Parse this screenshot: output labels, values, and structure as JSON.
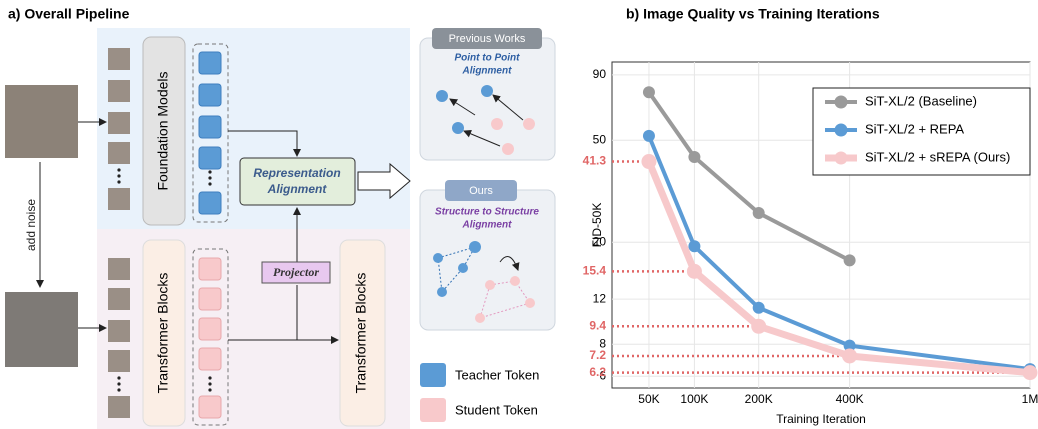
{
  "diagram": {
    "title": "a) Overall Pipeline",
    "add_noise": "add noise",
    "foundation_models": "Foundation Models",
    "transformer_blocks_left": "Transformer Blocks",
    "transformer_blocks_right": "Transformer Blocks",
    "representation_alignment": [
      "Representation",
      "Alignment"
    ],
    "projector": "Projector",
    "previous_works": {
      "header": "Previous Works",
      "subtitle": [
        "Point to Point",
        "Alignment"
      ]
    },
    "ours": {
      "header": "Ours",
      "subtitle": [
        "Structure to Structure",
        "Alignment"
      ]
    },
    "legend": {
      "teacher": "Teacher Token",
      "student": "Student Token"
    }
  },
  "chart_data": {
    "type": "line",
    "title": "b) Image Quality vs Training Iterations",
    "x_label": "Training Iteration",
    "y_label": "FID-50K",
    "x": [
      50000,
      100000,
      200000,
      400000,
      1000000
    ],
    "xscale": "sqrt",
    "yscale": "log",
    "xlim": [
      22000,
      1000000
    ],
    "ylim": [
      5.4,
      101
    ],
    "xticks": [
      {
        "value": 50000,
        "label": "50K"
      },
      {
        "value": 100000,
        "label": "100K"
      },
      {
        "value": 200000,
        "label": "200K"
      },
      {
        "value": 400000,
        "label": "400K"
      },
      {
        "value": 1000000,
        "label": "1M"
      }
    ],
    "yticks": [
      6,
      8,
      12,
      20,
      50,
      90
    ],
    "grid": true,
    "legend": "upper right",
    "annotation_color": "#e06666",
    "series": [
      {
        "name": "SiT-XL/2 (Baseline)",
        "color": "#9a9a9a",
        "values": [
          77,
          43,
          26,
          17,
          null
        ]
      },
      {
        "name": "SiT-XL/2 + REPA",
        "color": "#5b9bd5",
        "values": [
          52,
          19.3,
          11.1,
          7.9,
          6.4
        ]
      },
      {
        "name": "SiT-XL/2 + sREPA (Ours)",
        "color": "#f7c9cb",
        "values": [
          41.3,
          15.4,
          9.4,
          7.2,
          6.2
        ],
        "annotated": true
      }
    ]
  }
}
